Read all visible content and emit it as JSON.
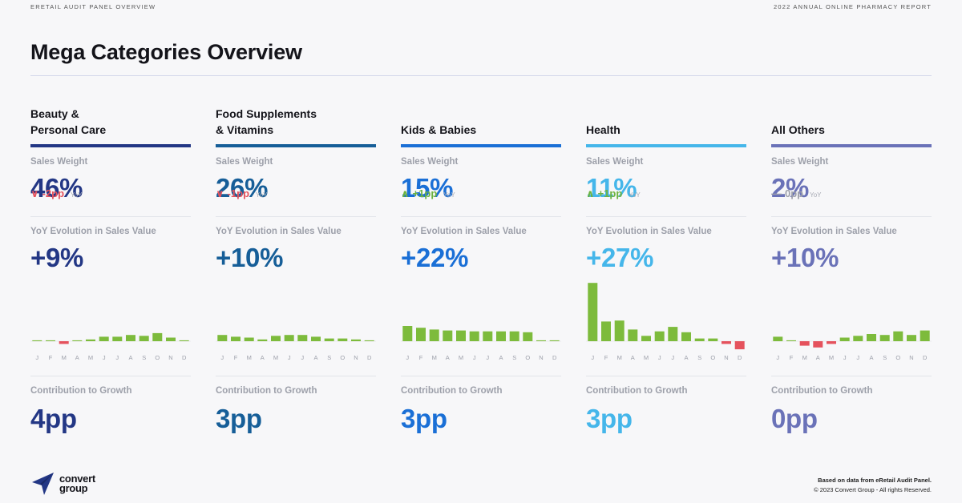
{
  "header": {
    "left_label": "ERETAIL AUDIT PANEL OVERVIEW",
    "right_label": "2022 ANNUAL ONLINE PHARMACY REPORT"
  },
  "title": "Mega Categories Overview",
  "labels": {
    "sales_weight": "Sales Weight",
    "yoy_evolution": "YoY Evolution in Sales Value",
    "contribution": "Contribution to Growth",
    "yoy_tag": "YoY"
  },
  "colors": {
    "positive_bar": "#7dbb3c",
    "negative_bar": "#e5525d",
    "down": "#e5525d",
    "up": "#6cb33f",
    "flat": "#9da0aa"
  },
  "months": [
    "J",
    "F",
    "M",
    "A",
    "M",
    "J",
    "J",
    "A",
    "S",
    "O",
    "N",
    "D"
  ],
  "categories": [
    {
      "name": "Beauty &\nPersonal Care",
      "color": "#233785",
      "sales_weight": "46%",
      "change": "-2pp",
      "direction": "down",
      "yoy": "+9%",
      "contribution": "4pp"
    },
    {
      "name": "Food Supplements\n& Vitamins",
      "color": "#165e98",
      "sales_weight": "26%",
      "change": "-1pp",
      "direction": "down",
      "yoy": "+10%",
      "contribution": "3pp"
    },
    {
      "name": "Kids & Babies",
      "color": "#1a6fd6",
      "sales_weight": "15%",
      "change": "+1pp",
      "direction": "up",
      "yoy": "+22%",
      "contribution": "3pp"
    },
    {
      "name": "Health",
      "color": "#45b6ea",
      "sales_weight": "11%",
      "change": "+1pp",
      "direction": "up",
      "yoy": "+27%",
      "contribution": "3pp"
    },
    {
      "name": "All Others",
      "color": "#6a72b8",
      "sales_weight": "2%",
      "change": "0pp",
      "direction": "flat",
      "yoy": "+10%",
      "contribution": "0pp"
    }
  ],
  "chart_data": [
    {
      "type": "bar",
      "title": "Beauty & Personal Care",
      "categories": [
        "J",
        "F",
        "M",
        "A",
        "M",
        "J",
        "J",
        "A",
        "S",
        "O",
        "N",
        "D"
      ],
      "values": [
        1,
        1,
        -3,
        1,
        2,
        5,
        5,
        7,
        6,
        9,
        4,
        1
      ],
      "ylim": [
        -10,
        70
      ]
    },
    {
      "type": "bar",
      "title": "Food Supplements & Vitamins",
      "categories": [
        "J",
        "F",
        "M",
        "A",
        "M",
        "J",
        "J",
        "A",
        "S",
        "O",
        "N",
        "D"
      ],
      "values": [
        7,
        5,
        4,
        2,
        6,
        7,
        7,
        5,
        3,
        3,
        2,
        1
      ],
      "ylim": [
        -10,
        70
      ]
    },
    {
      "type": "bar",
      "title": "Kids & Babies",
      "categories": [
        "J",
        "F",
        "M",
        "A",
        "M",
        "J",
        "J",
        "A",
        "S",
        "O",
        "N",
        "D"
      ],
      "values": [
        17,
        15,
        13,
        12,
        12,
        11,
        11,
        11,
        11,
        10,
        1,
        1
      ],
      "ylim": [
        -10,
        70
      ]
    },
    {
      "type": "bar",
      "title": "Health",
      "categories": [
        "J",
        "F",
        "M",
        "A",
        "M",
        "J",
        "J",
        "A",
        "S",
        "O",
        "N",
        "D"
      ],
      "values": [
        65,
        22,
        23,
        13,
        6,
        11,
        16,
        10,
        3,
        3,
        -3,
        -9
      ],
      "ylim": [
        -10,
        70
      ]
    },
    {
      "type": "bar",
      "title": "All Others",
      "categories": [
        "J",
        "F",
        "M",
        "A",
        "M",
        "J",
        "J",
        "A",
        "S",
        "O",
        "N",
        "D"
      ],
      "values": [
        5,
        1,
        -5,
        -7,
        -3,
        4,
        6,
        8,
        7,
        11,
        7,
        12
      ],
      "ylim": [
        -10,
        70
      ]
    }
  ],
  "footer": {
    "logo_line1": "convert",
    "logo_line2": "group",
    "note_line1": "Based on data from eRetail Audit Panel.",
    "note_line2": "© 2023 Convert Group - All rights Reserved."
  }
}
